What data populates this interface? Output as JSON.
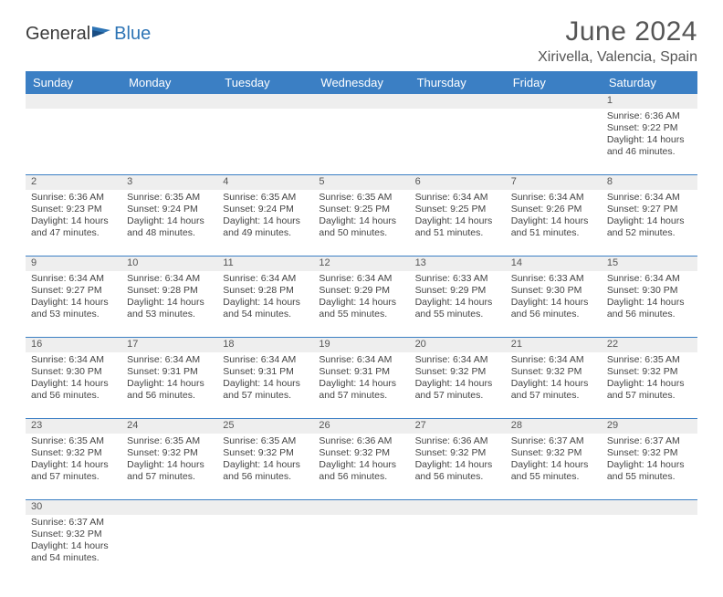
{
  "logo": {
    "text1": "General",
    "text2": "Blue"
  },
  "title": "June 2024",
  "location": "Xirivella, Valencia, Spain",
  "weekdays": [
    "Sunday",
    "Monday",
    "Tuesday",
    "Wednesday",
    "Thursday",
    "Friday",
    "Saturday"
  ],
  "colors": {
    "header_bar": "#3b7fc4",
    "daynum_bg": "#eeeeee",
    "rule": "#3b7fc4",
    "text": "#444444",
    "title_text": "#555555"
  },
  "weeks": [
    {
      "daynums": [
        "",
        "",
        "",
        "",
        "",
        "",
        "1"
      ],
      "cells": [
        null,
        null,
        null,
        null,
        null,
        null,
        {
          "sunrise": "Sunrise: 6:36 AM",
          "sunset": "Sunset: 9:22 PM",
          "day1": "Daylight: 14 hours",
          "day2": "and 46 minutes."
        }
      ]
    },
    {
      "daynums": [
        "2",
        "3",
        "4",
        "5",
        "6",
        "7",
        "8"
      ],
      "cells": [
        {
          "sunrise": "Sunrise: 6:36 AM",
          "sunset": "Sunset: 9:23 PM",
          "day1": "Daylight: 14 hours",
          "day2": "and 47 minutes."
        },
        {
          "sunrise": "Sunrise: 6:35 AM",
          "sunset": "Sunset: 9:24 PM",
          "day1": "Daylight: 14 hours",
          "day2": "and 48 minutes."
        },
        {
          "sunrise": "Sunrise: 6:35 AM",
          "sunset": "Sunset: 9:24 PM",
          "day1": "Daylight: 14 hours",
          "day2": "and 49 minutes."
        },
        {
          "sunrise": "Sunrise: 6:35 AM",
          "sunset": "Sunset: 9:25 PM",
          "day1": "Daylight: 14 hours",
          "day2": "and 50 minutes."
        },
        {
          "sunrise": "Sunrise: 6:34 AM",
          "sunset": "Sunset: 9:25 PM",
          "day1": "Daylight: 14 hours",
          "day2": "and 51 minutes."
        },
        {
          "sunrise": "Sunrise: 6:34 AM",
          "sunset": "Sunset: 9:26 PM",
          "day1": "Daylight: 14 hours",
          "day2": "and 51 minutes."
        },
        {
          "sunrise": "Sunrise: 6:34 AM",
          "sunset": "Sunset: 9:27 PM",
          "day1": "Daylight: 14 hours",
          "day2": "and 52 minutes."
        }
      ]
    },
    {
      "daynums": [
        "9",
        "10",
        "11",
        "12",
        "13",
        "14",
        "15"
      ],
      "cells": [
        {
          "sunrise": "Sunrise: 6:34 AM",
          "sunset": "Sunset: 9:27 PM",
          "day1": "Daylight: 14 hours",
          "day2": "and 53 minutes."
        },
        {
          "sunrise": "Sunrise: 6:34 AM",
          "sunset": "Sunset: 9:28 PM",
          "day1": "Daylight: 14 hours",
          "day2": "and 53 minutes."
        },
        {
          "sunrise": "Sunrise: 6:34 AM",
          "sunset": "Sunset: 9:28 PM",
          "day1": "Daylight: 14 hours",
          "day2": "and 54 minutes."
        },
        {
          "sunrise": "Sunrise: 6:34 AM",
          "sunset": "Sunset: 9:29 PM",
          "day1": "Daylight: 14 hours",
          "day2": "and 55 minutes."
        },
        {
          "sunrise": "Sunrise: 6:33 AM",
          "sunset": "Sunset: 9:29 PM",
          "day1": "Daylight: 14 hours",
          "day2": "and 55 minutes."
        },
        {
          "sunrise": "Sunrise: 6:33 AM",
          "sunset": "Sunset: 9:30 PM",
          "day1": "Daylight: 14 hours",
          "day2": "and 56 minutes."
        },
        {
          "sunrise": "Sunrise: 6:34 AM",
          "sunset": "Sunset: 9:30 PM",
          "day1": "Daylight: 14 hours",
          "day2": "and 56 minutes."
        }
      ]
    },
    {
      "daynums": [
        "16",
        "17",
        "18",
        "19",
        "20",
        "21",
        "22"
      ],
      "cells": [
        {
          "sunrise": "Sunrise: 6:34 AM",
          "sunset": "Sunset: 9:30 PM",
          "day1": "Daylight: 14 hours",
          "day2": "and 56 minutes."
        },
        {
          "sunrise": "Sunrise: 6:34 AM",
          "sunset": "Sunset: 9:31 PM",
          "day1": "Daylight: 14 hours",
          "day2": "and 56 minutes."
        },
        {
          "sunrise": "Sunrise: 6:34 AM",
          "sunset": "Sunset: 9:31 PM",
          "day1": "Daylight: 14 hours",
          "day2": "and 57 minutes."
        },
        {
          "sunrise": "Sunrise: 6:34 AM",
          "sunset": "Sunset: 9:31 PM",
          "day1": "Daylight: 14 hours",
          "day2": "and 57 minutes."
        },
        {
          "sunrise": "Sunrise: 6:34 AM",
          "sunset": "Sunset: 9:32 PM",
          "day1": "Daylight: 14 hours",
          "day2": "and 57 minutes."
        },
        {
          "sunrise": "Sunrise: 6:34 AM",
          "sunset": "Sunset: 9:32 PM",
          "day1": "Daylight: 14 hours",
          "day2": "and 57 minutes."
        },
        {
          "sunrise": "Sunrise: 6:35 AM",
          "sunset": "Sunset: 9:32 PM",
          "day1": "Daylight: 14 hours",
          "day2": "and 57 minutes."
        }
      ]
    },
    {
      "daynums": [
        "23",
        "24",
        "25",
        "26",
        "27",
        "28",
        "29"
      ],
      "cells": [
        {
          "sunrise": "Sunrise: 6:35 AM",
          "sunset": "Sunset: 9:32 PM",
          "day1": "Daylight: 14 hours",
          "day2": "and 57 minutes."
        },
        {
          "sunrise": "Sunrise: 6:35 AM",
          "sunset": "Sunset: 9:32 PM",
          "day1": "Daylight: 14 hours",
          "day2": "and 57 minutes."
        },
        {
          "sunrise": "Sunrise: 6:35 AM",
          "sunset": "Sunset: 9:32 PM",
          "day1": "Daylight: 14 hours",
          "day2": "and 56 minutes."
        },
        {
          "sunrise": "Sunrise: 6:36 AM",
          "sunset": "Sunset: 9:32 PM",
          "day1": "Daylight: 14 hours",
          "day2": "and 56 minutes."
        },
        {
          "sunrise": "Sunrise: 6:36 AM",
          "sunset": "Sunset: 9:32 PM",
          "day1": "Daylight: 14 hours",
          "day2": "and 56 minutes."
        },
        {
          "sunrise": "Sunrise: 6:37 AM",
          "sunset": "Sunset: 9:32 PM",
          "day1": "Daylight: 14 hours",
          "day2": "and 55 minutes."
        },
        {
          "sunrise": "Sunrise: 6:37 AM",
          "sunset": "Sunset: 9:32 PM",
          "day1": "Daylight: 14 hours",
          "day2": "and 55 minutes."
        }
      ]
    },
    {
      "daynums": [
        "30",
        "",
        "",
        "",
        "",
        "",
        ""
      ],
      "cells": [
        {
          "sunrise": "Sunrise: 6:37 AM",
          "sunset": "Sunset: 9:32 PM",
          "day1": "Daylight: 14 hours",
          "day2": "and 54 minutes."
        },
        null,
        null,
        null,
        null,
        null,
        null
      ]
    }
  ]
}
